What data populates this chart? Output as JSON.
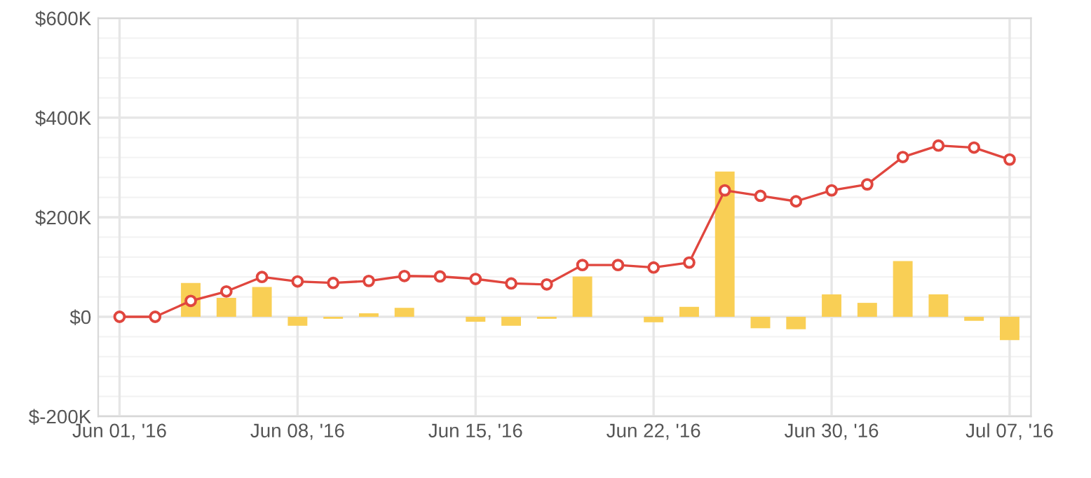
{
  "chart_data": {
    "type": "bar",
    "categories": [
      "Jun 01, '16",
      null,
      null,
      null,
      null,
      "Jun 08, '16",
      null,
      null,
      null,
      null,
      "Jun 15, '16",
      null,
      null,
      null,
      null,
      "Jun 22, '16",
      null,
      null,
      null,
      null,
      "Jun 30, '16",
      null,
      null,
      null,
      null,
      "Jul 07, '16"
    ],
    "series": [
      {
        "color": "#f9cf55",
        "values": [
          null,
          null,
          68000,
          38000,
          60000,
          -18000,
          -4000,
          7000,
          18000,
          null,
          -10000,
          -18000,
          -4000,
          81000,
          null,
          -11000,
          20000,
          292000,
          -23000,
          -25000,
          45000,
          28000,
          112000,
          45000,
          -8000,
          -47000
        ]
      },
      {
        "type": "line",
        "color": "#e0463e",
        "values": [
          0,
          0,
          32000,
          51000,
          80000,
          71000,
          68000,
          72000,
          82000,
          81000,
          76000,
          67000,
          65000,
          104000,
          104000,
          99000,
          109000,
          254000,
          243000,
          232000,
          254000,
          266000,
          321000,
          344000,
          340000,
          316000
        ]
      }
    ],
    "ylim": [
      -200000,
      600000
    ],
    "yticks": [
      {
        "value": -200000,
        "label": "$-200K"
      },
      {
        "value": -160000,
        "label": null
      },
      {
        "value": -120000,
        "label": null
      },
      {
        "value": -80000,
        "label": null
      },
      {
        "value": -40000,
        "label": null
      },
      {
        "value": 0,
        "label": "$0"
      },
      {
        "value": 40000,
        "label": null
      },
      {
        "value": 80000,
        "label": null
      },
      {
        "value": 120000,
        "label": null
      },
      {
        "value": 160000,
        "label": null
      },
      {
        "value": 200000,
        "label": "$200K"
      },
      {
        "value": 240000,
        "label": null
      },
      {
        "value": 280000,
        "label": null
      },
      {
        "value": 320000,
        "label": null
      },
      {
        "value": 360000,
        "label": null
      },
      {
        "value": 400000,
        "label": "$400K"
      },
      {
        "value": 440000,
        "label": null
      },
      {
        "value": 480000,
        "label": null
      },
      {
        "value": 520000,
        "label": null
      },
      {
        "value": 560000,
        "label": null
      },
      {
        "value": 600000,
        "label": "$600K"
      }
    ],
    "grid": true,
    "marker": "circle",
    "line_style": "solid",
    "legend": false
  }
}
